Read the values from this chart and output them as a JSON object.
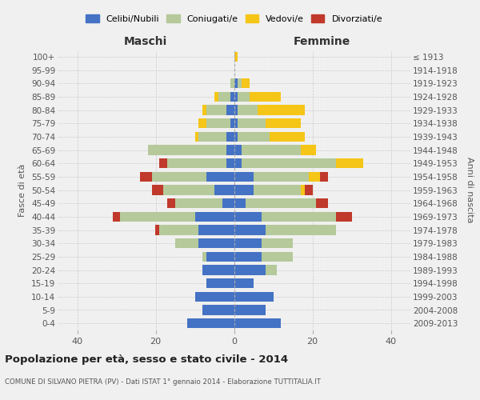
{
  "age_groups": [
    "0-4",
    "5-9",
    "10-14",
    "15-19",
    "20-24",
    "25-29",
    "30-34",
    "35-39",
    "40-44",
    "45-49",
    "50-54",
    "55-59",
    "60-64",
    "65-69",
    "70-74",
    "75-79",
    "80-84",
    "85-89",
    "90-94",
    "95-99",
    "100+"
  ],
  "birth_years": [
    "2009-2013",
    "2004-2008",
    "1999-2003",
    "1994-1998",
    "1989-1993",
    "1984-1988",
    "1979-1983",
    "1974-1978",
    "1969-1973",
    "1964-1968",
    "1959-1963",
    "1954-1958",
    "1949-1953",
    "1944-1948",
    "1939-1943",
    "1934-1938",
    "1929-1933",
    "1924-1928",
    "1919-1923",
    "1914-1918",
    "≤ 1913"
  ],
  "males": {
    "celibi": [
      12,
      8,
      10,
      7,
      8,
      7,
      9,
      9,
      10,
      3,
      5,
      7,
      2,
      2,
      2,
      1,
      2,
      1,
      0,
      0,
      0
    ],
    "coniugati": [
      0,
      0,
      0,
      0,
      0,
      1,
      6,
      10,
      19,
      12,
      13,
      14,
      15,
      20,
      7,
      6,
      5,
      3,
      1,
      0,
      0
    ],
    "vedovi": [
      0,
      0,
      0,
      0,
      0,
      0,
      0,
      0,
      0,
      0,
      0,
      0,
      0,
      0,
      1,
      2,
      1,
      1,
      0,
      0,
      0
    ],
    "divorziati": [
      0,
      0,
      0,
      0,
      0,
      0,
      0,
      1,
      2,
      2,
      3,
      3,
      2,
      0,
      0,
      0,
      0,
      0,
      0,
      0,
      0
    ]
  },
  "females": {
    "nubili": [
      12,
      8,
      10,
      5,
      8,
      7,
      7,
      8,
      7,
      3,
      5,
      5,
      2,
      2,
      1,
      1,
      1,
      1,
      1,
      0,
      0
    ],
    "coniugate": [
      0,
      0,
      0,
      0,
      3,
      8,
      8,
      18,
      19,
      18,
      12,
      14,
      24,
      15,
      8,
      7,
      5,
      3,
      1,
      0,
      0
    ],
    "vedove": [
      0,
      0,
      0,
      0,
      0,
      0,
      0,
      0,
      0,
      0,
      1,
      3,
      7,
      4,
      9,
      9,
      12,
      8,
      2,
      0,
      1
    ],
    "divorziate": [
      0,
      0,
      0,
      0,
      0,
      0,
      0,
      0,
      4,
      3,
      2,
      2,
      0,
      0,
      0,
      0,
      0,
      0,
      0,
      0,
      0
    ]
  },
  "colors": {
    "celibi": "#4472c4",
    "coniugati": "#b5c99a",
    "vedovi": "#f5c518",
    "divorziati": "#c0392b"
  },
  "legend_labels": [
    "Celibi/Nubili",
    "Coniugati/e",
    "Vedovi/e",
    "Divorziati/e"
  ],
  "title": "Popolazione per età, sesso e stato civile - 2014",
  "subtitle": "COMUNE DI SILVANO PIETRA (PV) - Dati ISTAT 1° gennaio 2014 - Elaborazione TUTTITALIA.IT",
  "xlabel_left": "Maschi",
  "xlabel_right": "Femmine",
  "ylabel_left": "Fasce di età",
  "ylabel_right": "Anni di nascita",
  "xlim": 45,
  "background_color": "#f0f0f0"
}
